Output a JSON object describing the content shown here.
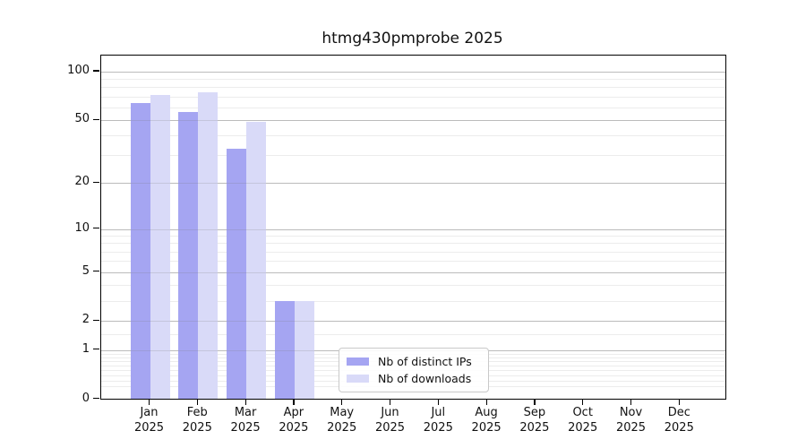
{
  "title": "htmg430pmprobe 2025",
  "chart_data": {
    "type": "bar",
    "title": "htmg430pmprobe 2025",
    "categories": [
      "Jan",
      "Feb",
      "Mar",
      "Apr",
      "May",
      "Jun",
      "Jul",
      "Aug",
      "Sep",
      "Oct",
      "Nov",
      "Dec"
    ],
    "category_year": "2025",
    "series": [
      {
        "name": "Nb of distinct IPs",
        "color": "#a5a5f2",
        "values": [
          64,
          56,
          33,
          3,
          0,
          0,
          0,
          0,
          0,
          0,
          0,
          0
        ]
      },
      {
        "name": "Nb of downloads",
        "color": "#d9daf8",
        "values": [
          72,
          74,
          49,
          3,
          0,
          0,
          0,
          0,
          0,
          0,
          0,
          0
        ]
      }
    ],
    "yscale": "log1p",
    "y_ticks": [
      0,
      1,
      2,
      5,
      10,
      20,
      50,
      100
    ],
    "y_minor_ticks": [
      0.2,
      0.3,
      0.4,
      0.5,
      0.6,
      0.7,
      0.8,
      0.9,
      1.5,
      3,
      4,
      6,
      7,
      8,
      9,
      30,
      40,
      60,
      70,
      80,
      90
    ],
    "ylim": [
      0,
      130
    ],
    "grid": "on",
    "legend_position": "lower-center"
  }
}
